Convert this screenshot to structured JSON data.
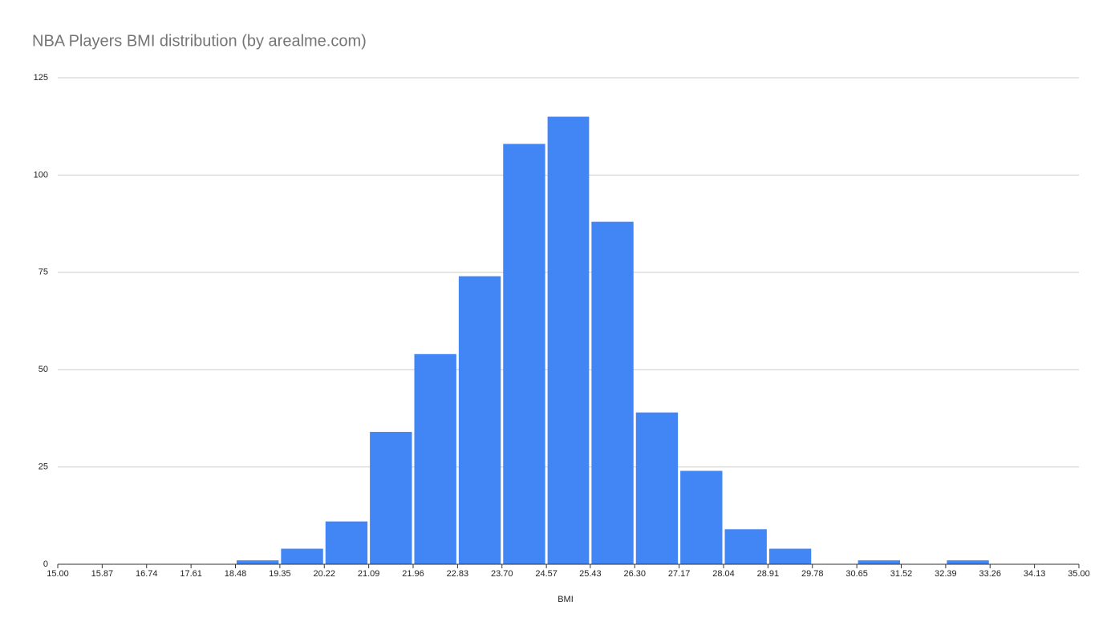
{
  "chart_data": {
    "type": "histogram",
    "title": "NBA Players BMI distribution (by arealme.com)",
    "x_label": "BMI",
    "bins": [
      15.0,
      15.87,
      16.74,
      17.61,
      18.48,
      19.35,
      20.22,
      21.09,
      21.96,
      22.83,
      23.7,
      24.57,
      25.43,
      26.3,
      27.17,
      28.04,
      28.91,
      29.78,
      30.65,
      31.52,
      32.39,
      33.26,
      34.13,
      35.0
    ],
    "values": [
      0,
      0,
      0,
      0,
      1,
      4,
      11,
      34,
      54,
      74,
      108,
      115,
      88,
      39,
      24,
      9,
      4,
      0,
      1,
      0,
      1,
      0,
      0
    ],
    "color": "#4285f4",
    "xlim": [
      15,
      35
    ],
    "xticks": [
      {
        "value": 15,
        "label": "15.00"
      },
      {
        "value": 15.87,
        "label": "15.87"
      },
      {
        "value": 16.74,
        "label": "16.74"
      },
      {
        "value": 17.61,
        "label": "17.61"
      },
      {
        "value": 18.48,
        "label": "18.48"
      },
      {
        "value": 19.35,
        "label": "19.35"
      },
      {
        "value": 20.22,
        "label": "20.22"
      },
      {
        "value": 21.09,
        "label": "21.09"
      },
      {
        "value": 21.96,
        "label": "21.96"
      },
      {
        "value": 22.83,
        "label": "22.83"
      },
      {
        "value": 23.7,
        "label": "23.70"
      },
      {
        "value": 24.57,
        "label": "24.57"
      },
      {
        "value": 25.43,
        "label": "25.43"
      },
      {
        "value": 26.3,
        "label": "26.30"
      },
      {
        "value": 27.17,
        "label": "27.17"
      },
      {
        "value": 28.04,
        "label": "28.04"
      },
      {
        "value": 28.91,
        "label": "28.91"
      },
      {
        "value": 29.78,
        "label": "29.78"
      },
      {
        "value": 30.65,
        "label": "30.65"
      },
      {
        "value": 31.52,
        "label": "31.52"
      },
      {
        "value": 32.39,
        "label": "32.39"
      },
      {
        "value": 33.26,
        "label": "33.26"
      },
      {
        "value": 34.13,
        "label": "34.13"
      },
      {
        "value": 35,
        "label": "35.00"
      }
    ],
    "ylim": [
      0,
      125
    ],
    "yticks": [
      0,
      25,
      50,
      75,
      100,
      125
    ],
    "grid": true
  }
}
